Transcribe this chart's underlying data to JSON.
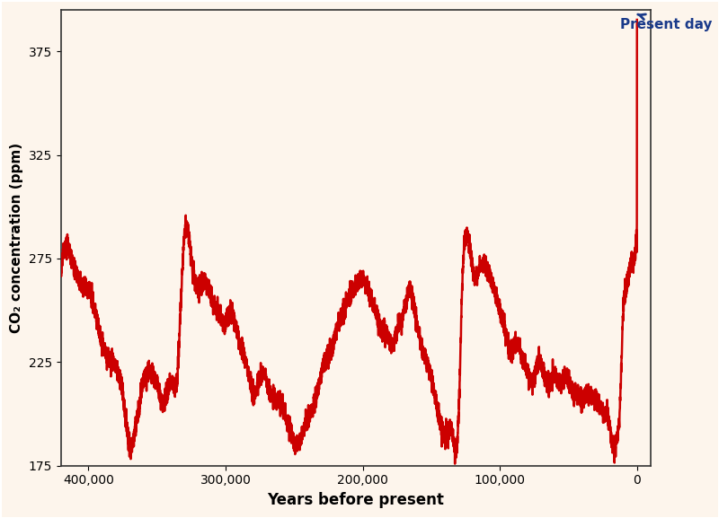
{
  "title": "",
  "xlabel": "Years before present",
  "ylabel": "CO₂ concentration (ppm)",
  "xlim": [
    420000,
    -10000
  ],
  "ylim": [
    175,
    395
  ],
  "yticks": [
    175,
    225,
    275,
    325,
    375
  ],
  "xticks": [
    400000,
    300000,
    200000,
    100000,
    0
  ],
  "xticklabels": [
    "400,000",
    "300,000",
    "200,000",
    "100,000",
    "0"
  ],
  "line_color": "#cc0000",
  "line_width": 1.8,
  "background_color": "#fdf5ec",
  "annotation_text": "Present day",
  "annotation_color": "#1a3a8a",
  "annotation_fontsize": 11,
  "present_day_co2": 393,
  "border_color": "#888888"
}
